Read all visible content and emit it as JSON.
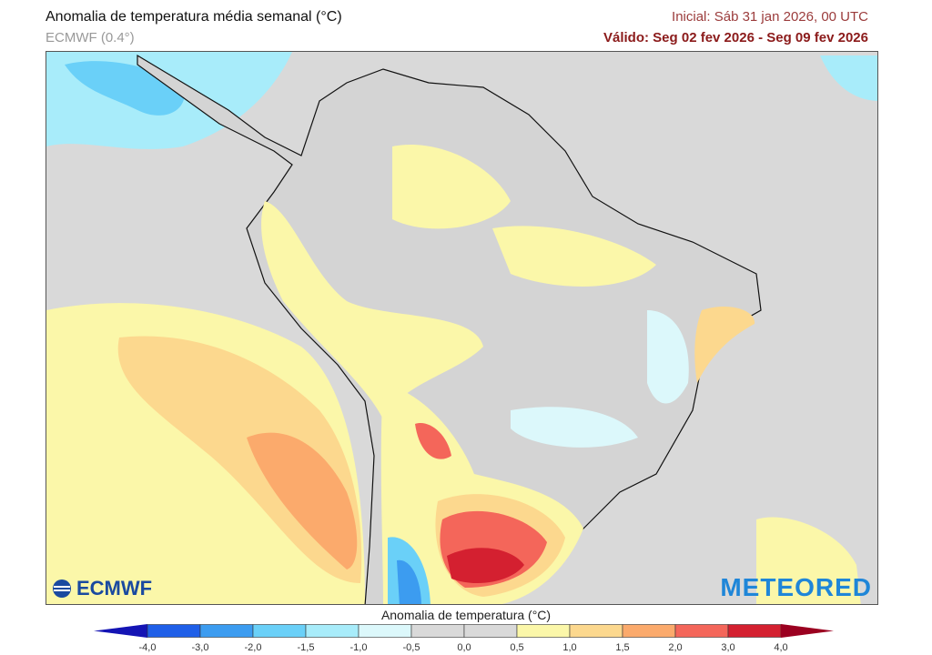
{
  "header": {
    "title": "Anomalia de temperatura média semanal (°C)",
    "model": "ECMWF (0.4°)",
    "initial": "Inicial: Sáb 31 jan 2026, 00 UTC",
    "valid": "Válido: Seg 02 fev 2026 - Seg 09 fev 2026"
  },
  "logos": {
    "left": "ECMWF",
    "right": "METEORED"
  },
  "colorbar": {
    "title": "Anomalia de temperatura (°C)",
    "ticks": [
      "-4,0",
      "-3,0",
      "-2,0",
      "-1,5",
      "-1,0",
      "-0,5",
      "0,0",
      "0,5",
      "1,0",
      "1,5",
      "2,0",
      "3,0",
      "4,0"
    ],
    "under_color": "#1414b4",
    "over_color": "#9b0020",
    "colors": [
      "#1f5fe8",
      "#3c9cf0",
      "#6ad0f8",
      "#a8ecfa",
      "#dcf8fb",
      "#d9d9d9",
      "#d9d9d9",
      "#fbf7a9",
      "#fcd88e",
      "#fbaa6c",
      "#f4665a",
      "#d42030"
    ]
  }
}
